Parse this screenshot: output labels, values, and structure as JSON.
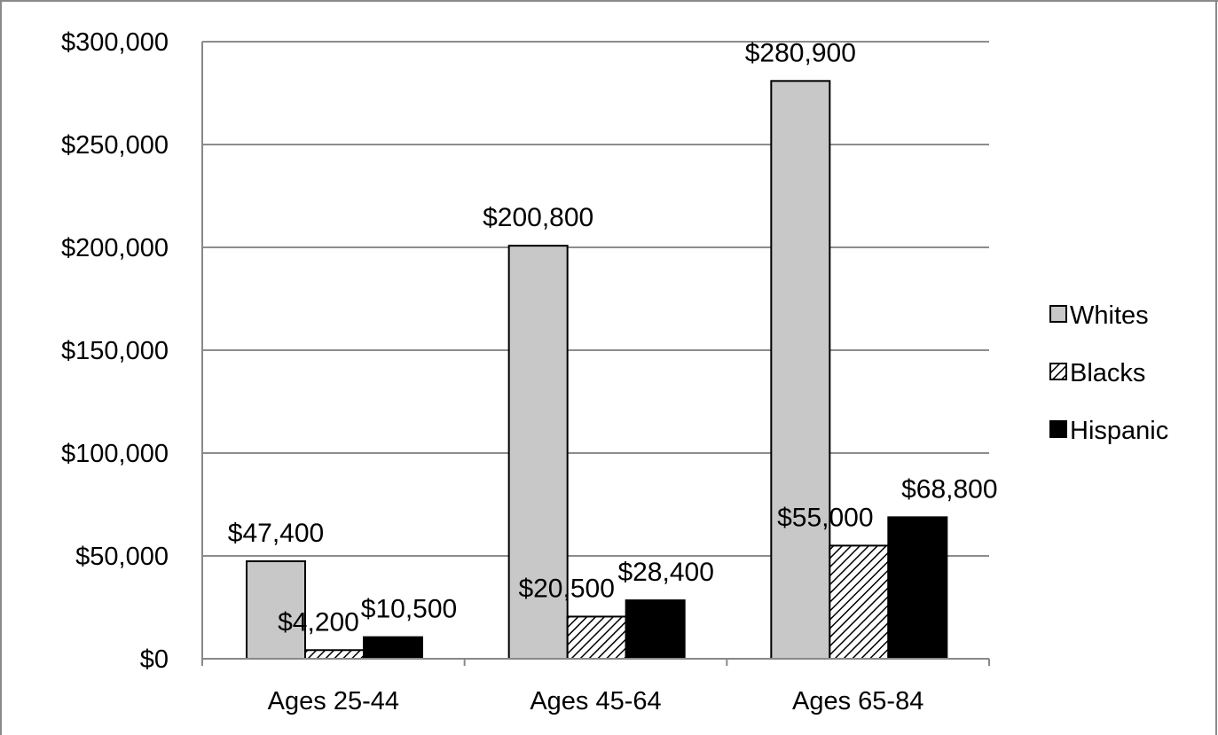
{
  "chart_data": {
    "type": "bar",
    "title": "",
    "xlabel": "",
    "ylabel": "",
    "ylim": [
      0,
      300000
    ],
    "y_ticks": [
      0,
      50000,
      100000,
      150000,
      200000,
      250000,
      300000
    ],
    "y_tick_labels": [
      "$0",
      "$50,000",
      "$100,000",
      "$150,000",
      "$200,000",
      "$250,000",
      "$300,000"
    ],
    "grid": true,
    "legend_position": "right",
    "categories": [
      "Ages 25-44",
      "Ages 45-64",
      "Ages 65-84"
    ],
    "series": [
      {
        "name": "Whites",
        "color": "#c8c8c8",
        "pattern": "solid",
        "values": [
          47400,
          200800,
          280900
        ],
        "labels": [
          "$47,400",
          "$200,800",
          "$280,900"
        ]
      },
      {
        "name": "Blacks",
        "color": "#ffffff",
        "pattern": "diagonal-hatch",
        "values": [
          4200,
          20500,
          55000
        ],
        "labels": [
          "$4,200",
          "$20,500",
          "$55,000"
        ]
      },
      {
        "name": "Hispanic",
        "color": "#000000",
        "pattern": "solid",
        "values": [
          10500,
          28400,
          68800
        ],
        "labels": [
          "$10,500",
          "$28,400",
          "$68,800"
        ]
      }
    ]
  }
}
